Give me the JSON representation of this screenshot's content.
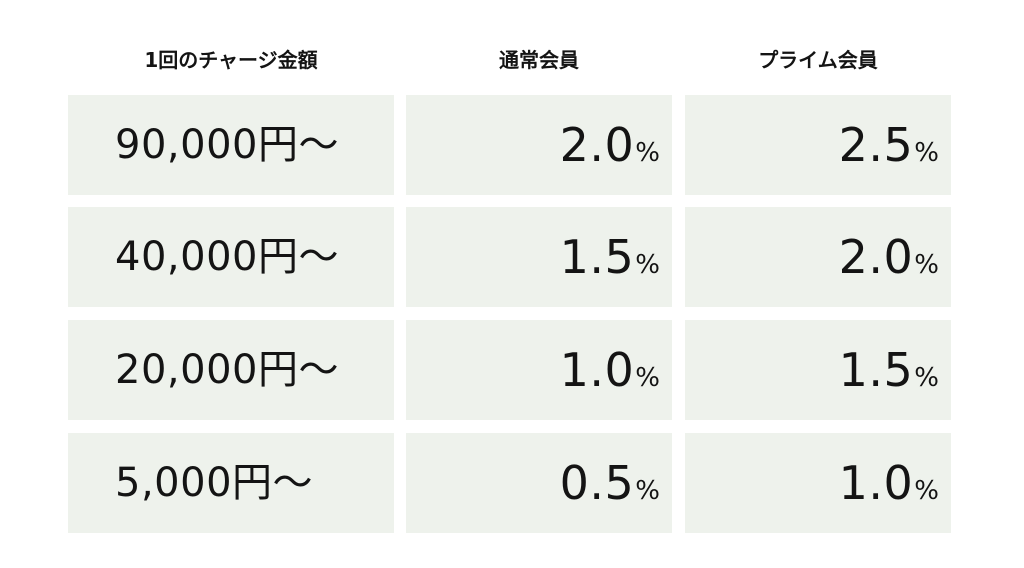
{
  "header": {
    "amount_label": "1回のチャージ金額",
    "regular_label": "通常会員",
    "prime_label": "プライム会員"
  },
  "rows": [
    {
      "amount": "90,000円～",
      "regular": "2.0",
      "regular_unit": "%",
      "prime": "2.5",
      "prime_unit": "%"
    },
    {
      "amount": "40,000円～",
      "regular": "1.5",
      "regular_unit": "%",
      "prime": "2.0",
      "prime_unit": "%"
    },
    {
      "amount": "20,000円～",
      "regular": "1.0",
      "regular_unit": "%",
      "prime": "1.5",
      "prime_unit": "%"
    },
    {
      "amount": "5,000円～",
      "regular": "0.5",
      "regular_unit": "%",
      "prime": "1.0",
      "prime_unit": "%"
    }
  ],
  "colors": {
    "cell_background": "#eef2ec",
    "text": "#141414",
    "page_background": "#ffffff"
  }
}
